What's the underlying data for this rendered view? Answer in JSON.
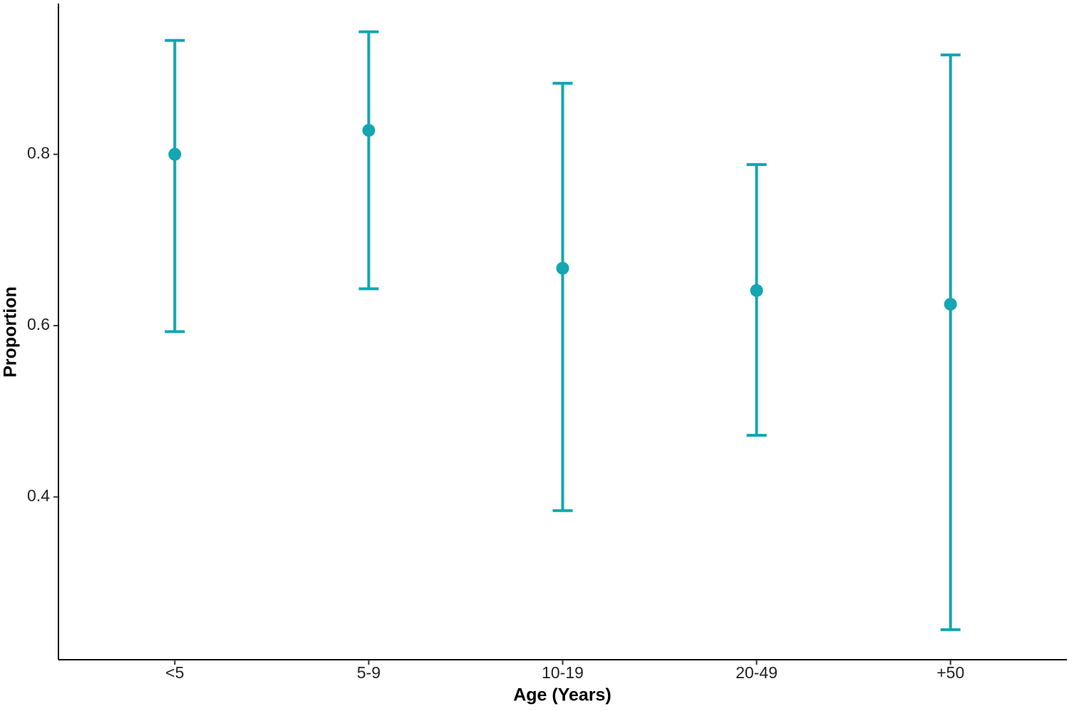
{
  "chart_data": {
    "type": "errorbar",
    "x_label": "Age (Years)",
    "y_label": "Proportion",
    "categories": [
      "<5",
      "5-9",
      "10-19",
      "20-49",
      "+50"
    ],
    "values": [
      0.8,
      0.828,
      0.667,
      0.641,
      0.625
    ],
    "lower": [
      0.593,
      0.643,
      0.384,
      0.472,
      0.245
    ],
    "upper": [
      0.933,
      0.943,
      0.883,
      0.788,
      0.916
    ],
    "color": "#13a6b3",
    "ylim": [
      0.21,
      0.976
    ],
    "yticks": [
      0.4,
      0.6,
      0.8
    ],
    "grid": false
  }
}
